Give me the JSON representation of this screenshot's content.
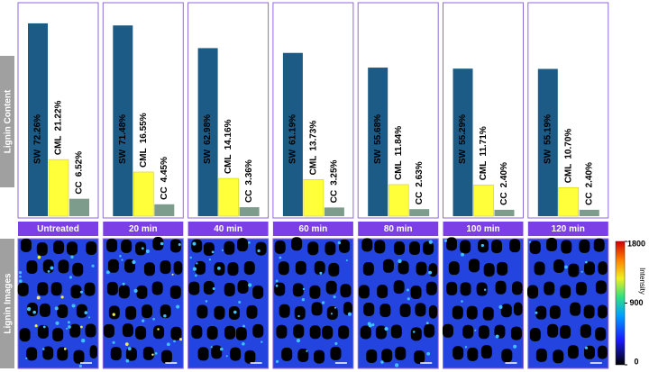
{
  "row_labels": [
    "Lignin Content",
    "Lignin Images"
  ],
  "chart_data": [
    {
      "type": "bar",
      "title": "Untreated",
      "categories": [
        "SW",
        "CML",
        "CC"
      ],
      "values": [
        72.26,
        21.22,
        6.52
      ],
      "value_labels": [
        "72.26%",
        "21.22%",
        "6.52%"
      ],
      "colors": [
        "#1b5b85",
        "#ffff3a",
        "#7e9c8c"
      ],
      "ylim": [
        0,
        80
      ]
    },
    {
      "type": "bar",
      "title": "20 min",
      "categories": [
        "SW",
        "CML",
        "CC"
      ],
      "values": [
        71.48,
        16.55,
        4.45
      ],
      "value_labels": [
        "71.48%",
        "16.55%",
        "4.45%"
      ],
      "colors": [
        "#1b5b85",
        "#ffff3a",
        "#7e9c8c"
      ],
      "ylim": [
        0,
        80
      ]
    },
    {
      "type": "bar",
      "title": "40 min",
      "categories": [
        "SW",
        "CML",
        "CC"
      ],
      "values": [
        62.98,
        14.16,
        3.36
      ],
      "value_labels": [
        "62.98%",
        "14.16%",
        "3.36%"
      ],
      "colors": [
        "#1b5b85",
        "#ffff3a",
        "#7e9c8c"
      ],
      "ylim": [
        0,
        80
      ]
    },
    {
      "type": "bar",
      "title": "60 min",
      "categories": [
        "SW",
        "CML",
        "CC"
      ],
      "values": [
        61.19,
        13.73,
        3.25
      ],
      "value_labels": [
        "61.19%",
        "13.73%",
        "3.25%"
      ],
      "colors": [
        "#1b5b85",
        "#ffff3a",
        "#7e9c8c"
      ],
      "ylim": [
        0,
        80
      ]
    },
    {
      "type": "bar",
      "title": "80 min",
      "categories": [
        "SW",
        "CML",
        "CC"
      ],
      "values": [
        55.68,
        11.84,
        2.63
      ],
      "value_labels": [
        "55.68%",
        "11.84%",
        "2.63%"
      ],
      "colors": [
        "#1b5b85",
        "#ffff3a",
        "#7e9c8c"
      ],
      "ylim": [
        0,
        80
      ]
    },
    {
      "type": "bar",
      "title": "100 min",
      "categories": [
        "SW",
        "CML",
        "CC"
      ],
      "values": [
        55.29,
        11.71,
        2.4
      ],
      "value_labels": [
        "55.29%",
        "11.71%",
        "2.40%"
      ],
      "colors": [
        "#1b5b85",
        "#ffff3a",
        "#7e9c8c"
      ],
      "ylim": [
        0,
        80
      ]
    },
    {
      "type": "bar",
      "title": "120 min",
      "categories": [
        "SW",
        "CML",
        "CC"
      ],
      "values": [
        55.19,
        10.7,
        2.4
      ],
      "value_labels": [
        "55.19%",
        "10.70%",
        "2.40%"
      ],
      "colors": [
        "#1b5b85",
        "#ffff3a",
        "#7e9c8c"
      ],
      "ylim": [
        0,
        80
      ]
    }
  ],
  "colorbar": {
    "label": "Intensity",
    "lim": [
      0,
      1800
    ],
    "ticks": [
      0,
      900,
      1800
    ]
  }
}
